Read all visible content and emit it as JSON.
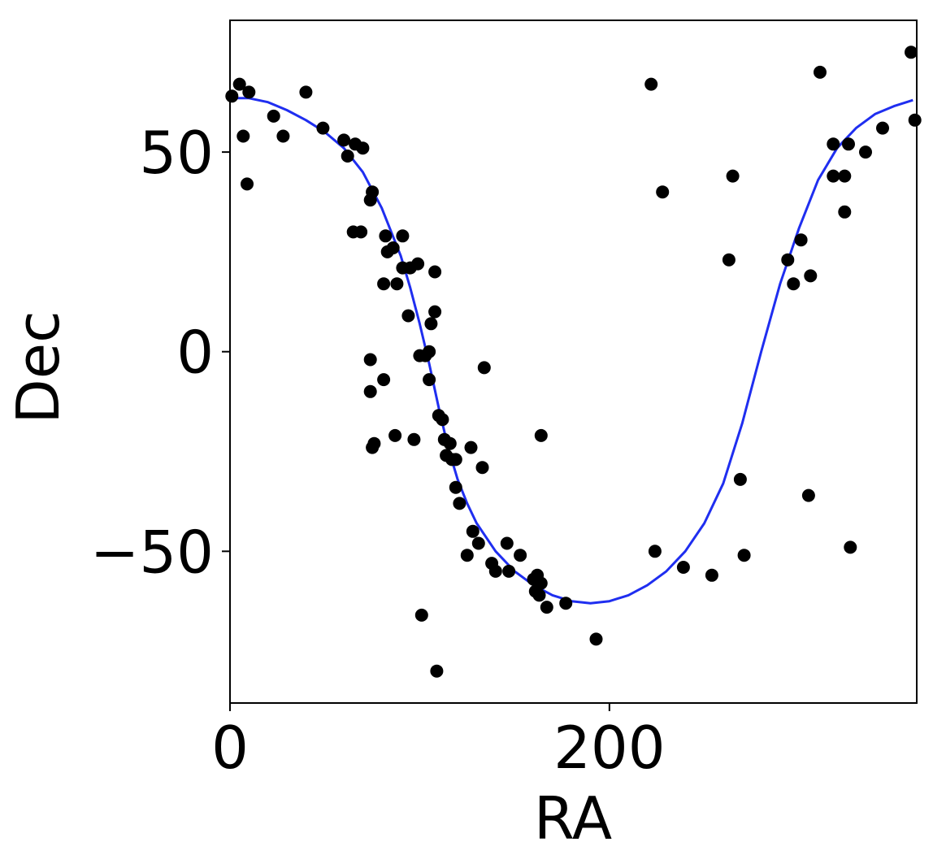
{
  "chart_data": {
    "type": "scatter",
    "title": "",
    "xlabel": "RA",
    "ylabel": "Dec",
    "xlim": [
      0,
      362
    ],
    "ylim": [
      -88,
      83
    ],
    "x_ticks": [
      {
        "value": 0,
        "label": "0"
      },
      {
        "value": 200,
        "label": "200"
      }
    ],
    "y_ticks": [
      {
        "value": 50,
        "label": "50"
      },
      {
        "value": 0,
        "label": "0"
      },
      {
        "value": -50,
        "label": "−50"
      }
    ],
    "grid": false,
    "legend": "none",
    "colors": {
      "points": "#000000",
      "curve": "#1f2ef0",
      "axes": "#000000"
    },
    "series": [
      {
        "kind": "points",
        "points": [
          [
            1,
            64
          ],
          [
            5,
            67
          ],
          [
            10,
            65
          ],
          [
            7,
            54
          ],
          [
            9,
            42
          ],
          [
            23,
            59
          ],
          [
            28,
            54
          ],
          [
            40,
            65
          ],
          [
            49,
            56
          ],
          [
            60,
            53
          ],
          [
            66,
            52
          ],
          [
            70,
            51
          ],
          [
            62,
            49
          ],
          [
            74,
            38
          ],
          [
            75,
            40
          ],
          [
            65,
            30
          ],
          [
            69,
            30
          ],
          [
            74,
            -2
          ],
          [
            74,
            -10
          ],
          [
            81,
            -7
          ],
          [
            75,
            -24
          ],
          [
            76,
            -23
          ],
          [
            81,
            17
          ],
          [
            82,
            29
          ],
          [
            83,
            25
          ],
          [
            86,
            26
          ],
          [
            88,
            17
          ],
          [
            87,
            -21
          ],
          [
            91,
            29
          ],
          [
            91,
            21
          ],
          [
            94,
            9
          ],
          [
            95,
            21
          ],
          [
            97,
            -22
          ],
          [
            99,
            22
          ],
          [
            100,
            -1
          ],
          [
            101,
            -66
          ],
          [
            103,
            -1
          ],
          [
            105,
            0
          ],
          [
            105,
            -7
          ],
          [
            106,
            7
          ],
          [
            108,
            20
          ],
          [
            108,
            10
          ],
          [
            109,
            -80
          ],
          [
            110,
            -16
          ],
          [
            112,
            -17
          ],
          [
            113,
            -22
          ],
          [
            114,
            -26
          ],
          [
            116,
            -23
          ],
          [
            117,
            -27
          ],
          [
            119,
            -27
          ],
          [
            119,
            -34
          ],
          [
            121,
            -38
          ],
          [
            127,
            -24
          ],
          [
            125,
            -51
          ],
          [
            128,
            -45
          ],
          [
            131,
            -48
          ],
          [
            133,
            -29
          ],
          [
            134,
            -4
          ],
          [
            138,
            -53
          ],
          [
            140,
            -55
          ],
          [
            146,
            -48
          ],
          [
            147,
            -55
          ],
          [
            153,
            -51
          ],
          [
            160,
            -57
          ],
          [
            161,
            -60
          ],
          [
            162,
            -56
          ],
          [
            164,
            -58
          ],
          [
            163,
            -61
          ],
          [
            164,
            -21
          ],
          [
            167,
            -64
          ],
          [
            177,
            -63
          ],
          [
            193,
            -72
          ],
          [
            222,
            67
          ],
          [
            224,
            -50
          ],
          [
            228,
            40
          ],
          [
            239,
            -54
          ],
          [
            254,
            -56
          ],
          [
            263,
            23
          ],
          [
            265,
            44
          ],
          [
            269,
            -32
          ],
          [
            271,
            -51
          ],
          [
            294,
            23
          ],
          [
            297,
            17
          ],
          [
            301,
            28
          ],
          [
            305,
            -36
          ],
          [
            306,
            19
          ],
          [
            311,
            70
          ],
          [
            318,
            52
          ],
          [
            318,
            44
          ],
          [
            324,
            44
          ],
          [
            324,
            35
          ],
          [
            326,
            52
          ],
          [
            327,
            -49
          ],
          [
            335,
            50
          ],
          [
            344,
            56
          ],
          [
            359,
            75
          ],
          [
            361,
            58
          ]
        ]
      },
      {
        "kind": "curve"
      }
    ]
  }
}
